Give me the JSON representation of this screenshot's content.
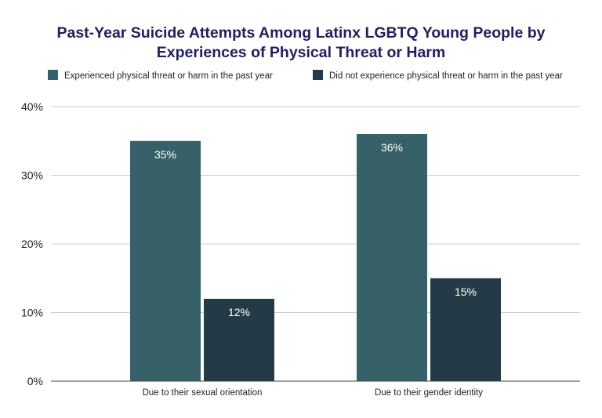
{
  "chart_data": {
    "type": "bar",
    "title": "Past-Year Suicide Attempts Among Latinx LGBTQ Young People by Experiences of Physical Threat or Harm",
    "title_lines": [
      "Past-Year Suicide Attempts Among Latinx LGBTQ Young People by",
      "Experiences of Physical Threat or Harm"
    ],
    "categories": [
      "Due to their sexual orientation",
      "Due to their gender identity"
    ],
    "series": [
      {
        "name": "Experienced physical threat or harm in the past year",
        "values": [
          35,
          36
        ],
        "labels": [
          "35%",
          "36%"
        ],
        "color": "#366169"
      },
      {
        "name": "Did not experience physical threat or harm in the past year",
        "values": [
          12,
          15
        ],
        "labels": [
          "12%",
          "15%"
        ],
        "color": "#243b47"
      }
    ],
    "ylim": [
      0,
      40
    ],
    "yticks": [
      {
        "value": 0,
        "label": "0%"
      },
      {
        "value": 10,
        "label": "10%"
      },
      {
        "value": 20,
        "label": "20%"
      },
      {
        "value": 30,
        "label": "30%"
      },
      {
        "value": 40,
        "label": "40%"
      }
    ],
    "xlabel": "",
    "ylabel": "",
    "grid": true,
    "legend_position": "top",
    "gridline_color": "#cccccc",
    "axis_color": "#444444",
    "title_color": "#21205e"
  }
}
